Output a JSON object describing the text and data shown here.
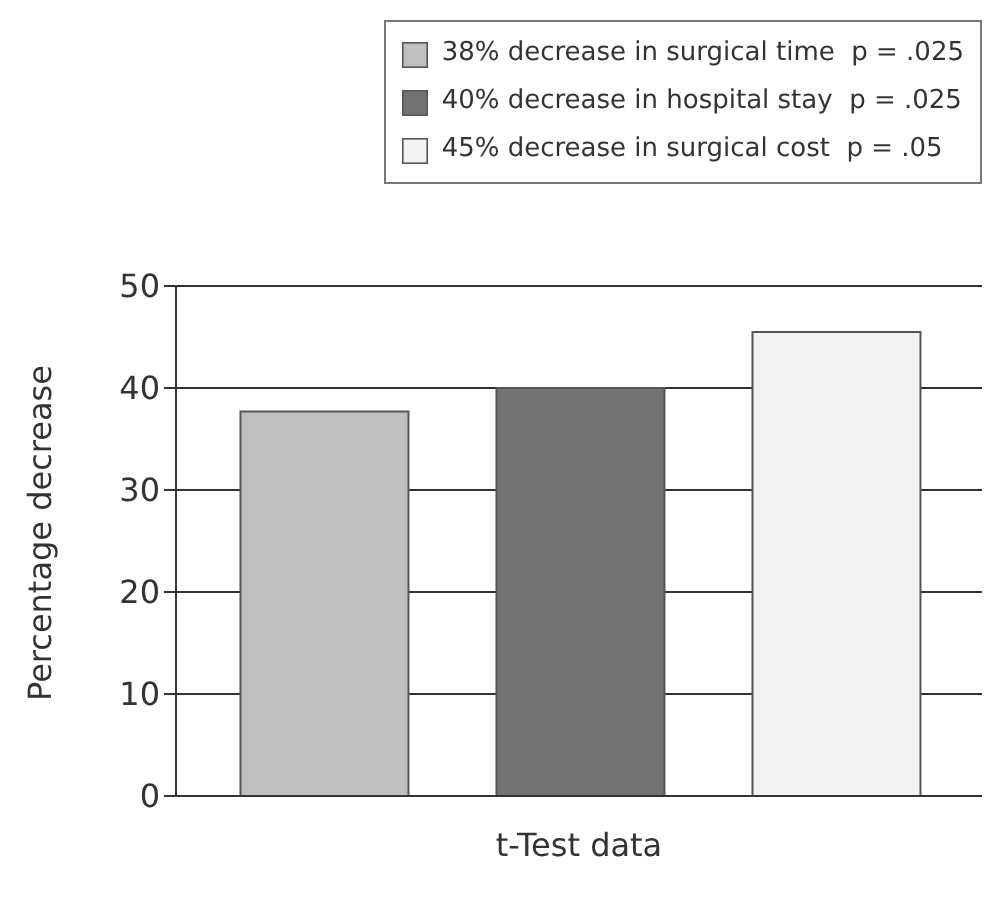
{
  "chart_data": {
    "type": "bar",
    "categories": [
      null
    ],
    "xlabel": "t-Test data",
    "ylabel": "Percentage decrease",
    "series": [
      {
        "name": "38% decrease in surgical time  p = .025",
        "color": "#bebfc1",
        "values": [
          37.7
        ]
      },
      {
        "name": "40% decrease in hospital stay  p = .025",
        "color": "#727375",
        "values": [
          40
        ]
      },
      {
        "name": "45% decrease in surgical cost  p = .05",
        "color": "#f1f2f2",
        "values": [
          45.5
        ]
      }
    ],
    "ylim": [
      0,
      50
    ],
    "yticks": [
      0,
      10,
      20,
      30,
      40,
      50
    ],
    "grid": "y",
    "legend": "top right"
  }
}
